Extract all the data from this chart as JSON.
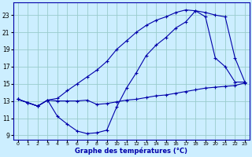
{
  "title": "Graphe des températures (°C)",
  "bg_color": "#cceeff",
  "line_color": "#0000aa",
  "grid_color": "#99cccc",
  "xlim": [
    -0.5,
    23.5
  ],
  "ylim": [
    8.5,
    24.5
  ],
  "xticks": [
    0,
    1,
    2,
    3,
    4,
    5,
    6,
    7,
    8,
    9,
    10,
    11,
    12,
    13,
    14,
    15,
    16,
    17,
    18,
    19,
    20,
    21,
    22,
    23
  ],
  "yticks": [
    9,
    11,
    13,
    15,
    17,
    19,
    21,
    23
  ],
  "line1_x": [
    0,
    1,
    2,
    3,
    4,
    5,
    6,
    7,
    8,
    9,
    10,
    11,
    12,
    13,
    14,
    15,
    16,
    17,
    18,
    19,
    20,
    21,
    22,
    23
  ],
  "line1_y": [
    13.2,
    12.8,
    12.4,
    13.1,
    13.3,
    14.2,
    15.0,
    15.8,
    16.6,
    17.6,
    19.0,
    20.0,
    21.0,
    21.8,
    22.4,
    22.8,
    23.3,
    23.6,
    23.5,
    23.3,
    23.0,
    22.8,
    18.0,
    15.2
  ],
  "line2_x": [
    0,
    1,
    2,
    3,
    4,
    5,
    6,
    7,
    8,
    9,
    10,
    11,
    12,
    13,
    14,
    15,
    16,
    17,
    18,
    19,
    20,
    21,
    22,
    23
  ],
  "line2_y": [
    13.2,
    12.8,
    12.4,
    13.1,
    11.2,
    10.3,
    9.5,
    9.2,
    9.3,
    9.6,
    12.3,
    14.5,
    16.3,
    18.3,
    19.5,
    20.4,
    21.5,
    22.2,
    23.5,
    22.8,
    18.0,
    17.0,
    15.2,
    15.2
  ],
  "line3_x": [
    0,
    1,
    2,
    3,
    4,
    5,
    6,
    7,
    8,
    9,
    10,
    11,
    12,
    13,
    14,
    15,
    16,
    17,
    18,
    19,
    20,
    21,
    22,
    23
  ],
  "line3_y": [
    13.2,
    12.8,
    12.4,
    13.1,
    13.0,
    13.0,
    13.0,
    13.1,
    12.6,
    12.7,
    12.9,
    13.1,
    13.2,
    13.4,
    13.6,
    13.7,
    13.9,
    14.1,
    14.3,
    14.5,
    14.6,
    14.7,
    14.8,
    15.1
  ]
}
